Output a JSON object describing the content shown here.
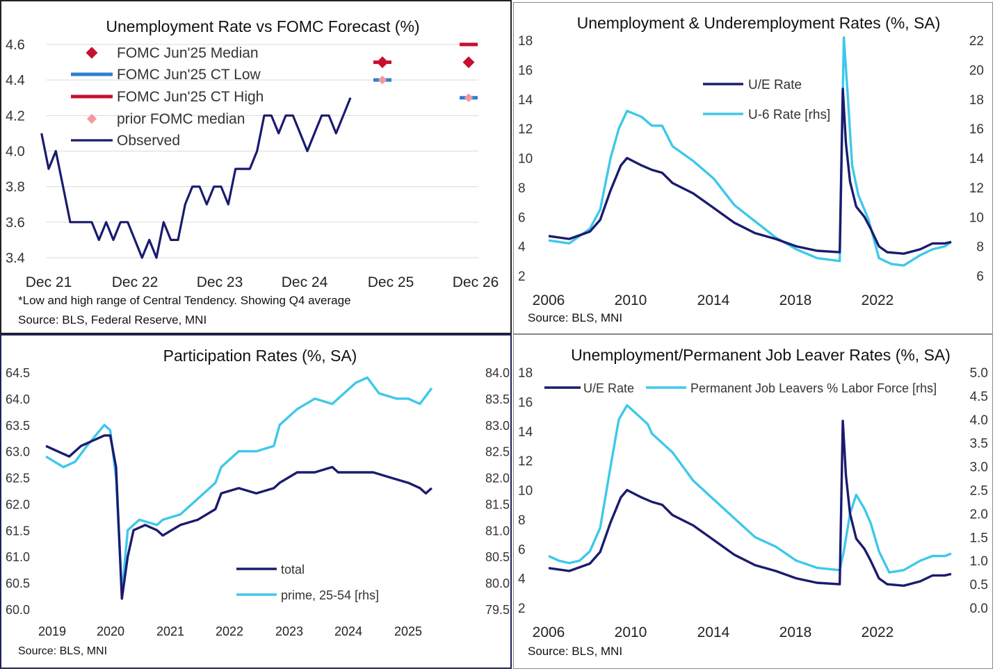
{
  "colors": {
    "navy": "#1a1b6e",
    "cyan": "#3ec8ea",
    "median": "#c8102e",
    "ct_low": "#2f7fcc",
    "ct_high": "#c8102e",
    "prior": "#f4989e",
    "grid": "#d9d9d9"
  },
  "chart_data": [
    {
      "id": "p1",
      "type": "line",
      "title": "Unemployment Rate vs FOMC Forecast (%)",
      "footnote": "*Low and high range of Central Tendency. Showing Q4 average",
      "source": "Source: BLS, Federal Reserve, MNI",
      "x_ticks": [
        "Dec 21",
        "Dec 22",
        "Dec 23",
        "Dec 24",
        "Dec 25",
        "Dec 26"
      ],
      "ylim": [
        3.4,
        4.6
      ],
      "y_ticks": [
        "4.6",
        "4.4",
        "4.2",
        "4.0",
        "3.8",
        "3.6",
        "3.4"
      ],
      "grid": true,
      "legend_position": "top-left",
      "legend": [
        "FOMC Jun'25 Median",
        "FOMC Jun'25 CT Low",
        "FOMC Jun'25 CT High",
        "prior FOMC median",
        "Observed"
      ],
      "observed": {
        "name": "Observed",
        "start": "Nov 2021",
        "values": [
          4.1,
          3.9,
          4.0,
          3.8,
          3.6,
          3.6,
          3.6,
          3.6,
          3.5,
          3.6,
          3.5,
          3.6,
          3.6,
          3.5,
          3.4,
          3.5,
          3.4,
          3.6,
          3.5,
          3.5,
          3.7,
          3.8,
          3.8,
          3.7,
          3.8,
          3.8,
          3.7,
          3.9,
          3.9,
          3.9,
          4.0,
          4.2,
          4.2,
          4.1,
          4.2,
          4.2,
          4.1,
          4.0,
          4.1,
          4.2,
          4.2,
          4.1,
          4.2,
          4.3
        ]
      },
      "fomc_points": [
        {
          "x": "Dec 25",
          "median": 4.5,
          "ct_low": 4.4,
          "ct_high": 4.5,
          "prior_median": 4.4
        },
        {
          "x": "Dec 26",
          "median": 4.5,
          "ct_low": 4.3,
          "ct_high": 4.6,
          "prior_median": 4.3
        }
      ]
    },
    {
      "id": "p2",
      "type": "line",
      "title": "Unemployment & Underemployment Rates (%, SA)",
      "source": "Source: BLS, MNI",
      "x_ticks": [
        "2006",
        "2010",
        "2014",
        "2018",
        "2022"
      ],
      "xlim": [
        2006,
        2025.6
      ],
      "ylim": [
        2,
        18
      ],
      "y2lim": [
        6,
        22
      ],
      "y_ticks": [
        "18",
        "16",
        "14",
        "12",
        "10",
        "8",
        "6",
        "4",
        "2"
      ],
      "y2_ticks": [
        "22",
        "20",
        "18",
        "16",
        "14",
        "12",
        "10",
        "8",
        "6"
      ],
      "grid": false,
      "legend": [
        "U/E Rate",
        "U-6 Rate [rhs]"
      ],
      "series": [
        {
          "name": "U/E Rate",
          "axis": "left",
          "points": [
            [
              2006,
              4.7
            ],
            [
              2007,
              4.5
            ],
            [
              2008,
              5.0
            ],
            [
              2008.5,
              5.8
            ],
            [
              2009,
              7.8
            ],
            [
              2009.5,
              9.5
            ],
            [
              2009.8,
              10.0
            ],
            [
              2010.5,
              9.5
            ],
            [
              2011,
              9.2
            ],
            [
              2011.5,
              9.0
            ],
            [
              2012,
              8.3
            ],
            [
              2013,
              7.6
            ],
            [
              2014,
              6.6
            ],
            [
              2015,
              5.6
            ],
            [
              2016,
              4.9
            ],
            [
              2017,
              4.5
            ],
            [
              2018,
              4.0
            ],
            [
              2019,
              3.7
            ],
            [
              2020.1,
              3.6
            ],
            [
              2020.25,
              14.7
            ],
            [
              2020.4,
              11.0
            ],
            [
              2020.6,
              8.4
            ],
            [
              2020.9,
              6.7
            ],
            [
              2021.3,
              6.0
            ],
            [
              2021.6,
              5.2
            ],
            [
              2022,
              4.0
            ],
            [
              2022.4,
              3.6
            ],
            [
              2023.2,
              3.5
            ],
            [
              2024,
              3.8
            ],
            [
              2024.6,
              4.2
            ],
            [
              2025.2,
              4.2
            ],
            [
              2025.5,
              4.3
            ]
          ]
        },
        {
          "name": "U-6 Rate [rhs]",
          "axis": "right",
          "points": [
            [
              2006,
              8.4
            ],
            [
              2007,
              8.2
            ],
            [
              2008,
              9.2
            ],
            [
              2008.5,
              10.5
            ],
            [
              2009,
              14.0
            ],
            [
              2009.4,
              16.0
            ],
            [
              2009.8,
              17.2
            ],
            [
              2010.5,
              16.8
            ],
            [
              2011,
              16.2
            ],
            [
              2011.5,
              16.2
            ],
            [
              2012,
              14.8
            ],
            [
              2013,
              13.8
            ],
            [
              2014,
              12.6
            ],
            [
              2015,
              10.8
            ],
            [
              2016,
              9.7
            ],
            [
              2017,
              8.6
            ],
            [
              2018,
              7.8
            ],
            [
              2019,
              7.2
            ],
            [
              2020.1,
              7.0
            ],
            [
              2020.3,
              22.8
            ],
            [
              2020.5,
              18.0
            ],
            [
              2020.7,
              13.5
            ],
            [
              2021,
              11.5
            ],
            [
              2021.5,
              9.8
            ],
            [
              2022,
              7.2
            ],
            [
              2022.6,
              6.8
            ],
            [
              2023.2,
              6.7
            ],
            [
              2024,
              7.4
            ],
            [
              2024.6,
              7.8
            ],
            [
              2025.2,
              8.0
            ],
            [
              2025.5,
              8.3
            ]
          ]
        }
      ]
    },
    {
      "id": "p3",
      "type": "line",
      "title": "Participation Rates (%, SA)",
      "source": "Source: BLS, MNI",
      "x_ticks": [
        "2019",
        "2020",
        "2021",
        "2022",
        "2023",
        "2024",
        "2025"
      ],
      "xlim": [
        2019,
        2025.9
      ],
      "ylim": [
        60.0,
        64.5
      ],
      "y2lim": [
        79.5,
        84.0
      ],
      "y_ticks": [
        "64.5",
        "64.0",
        "63.5",
        "63.0",
        "62.5",
        "62.0",
        "61.5",
        "61.0",
        "60.5",
        "60.0"
      ],
      "y2_ticks": [
        "84.0",
        "83.5",
        "83.0",
        "82.5",
        "82.0",
        "81.5",
        "81.0",
        "80.5",
        "80.0",
        "79.5"
      ],
      "grid": false,
      "legend": [
        "total",
        "prime, 25-54 [rhs]"
      ],
      "series": [
        {
          "name": "total",
          "axis": "left",
          "points": [
            [
              2019,
              63.1
            ],
            [
              2019.2,
              63.0
            ],
            [
              2019.4,
              62.9
            ],
            [
              2019.6,
              63.1
            ],
            [
              2019.8,
              63.2
            ],
            [
              2020,
              63.3
            ],
            [
              2020.1,
              63.3
            ],
            [
              2020.2,
              62.7
            ],
            [
              2020.3,
              60.2
            ],
            [
              2020.4,
              61.0
            ],
            [
              2020.5,
              61.5
            ],
            [
              2020.7,
              61.6
            ],
            [
              2020.9,
              61.5
            ],
            [
              2021,
              61.4
            ],
            [
              2021.3,
              61.6
            ],
            [
              2021.6,
              61.7
            ],
            [
              2021.9,
              61.9
            ],
            [
              2022,
              62.2
            ],
            [
              2022.3,
              62.3
            ],
            [
              2022.6,
              62.2
            ],
            [
              2022.9,
              62.3
            ],
            [
              2023,
              62.4
            ],
            [
              2023.3,
              62.6
            ],
            [
              2023.6,
              62.6
            ],
            [
              2023.9,
              62.7
            ],
            [
              2024,
              62.6
            ],
            [
              2024.3,
              62.6
            ],
            [
              2024.6,
              62.6
            ],
            [
              2024.9,
              62.5
            ],
            [
              2025.2,
              62.4
            ],
            [
              2025.4,
              62.3
            ],
            [
              2025.5,
              62.2
            ],
            [
              2025.6,
              62.3
            ]
          ]
        },
        {
          "name": "prime, 25-54 [rhs]",
          "axis": "right",
          "points": [
            [
              2019,
              82.4
            ],
            [
              2019.3,
              82.2
            ],
            [
              2019.5,
              82.3
            ],
            [
              2019.7,
              82.6
            ],
            [
              2020,
              83.0
            ],
            [
              2020.1,
              82.9
            ],
            [
              2020.2,
              82.0
            ],
            [
              2020.3,
              79.8
            ],
            [
              2020.4,
              81.0
            ],
            [
              2020.6,
              81.2
            ],
            [
              2020.9,
              81.1
            ],
            [
              2021,
              81.2
            ],
            [
              2021.3,
              81.3
            ],
            [
              2021.6,
              81.6
            ],
            [
              2021.9,
              81.9
            ],
            [
              2022,
              82.2
            ],
            [
              2022.3,
              82.5
            ],
            [
              2022.6,
              82.5
            ],
            [
              2022.9,
              82.6
            ],
            [
              2023,
              83.0
            ],
            [
              2023.3,
              83.3
            ],
            [
              2023.6,
              83.5
            ],
            [
              2023.9,
              83.4
            ],
            [
              2024,
              83.5
            ],
            [
              2024.3,
              83.8
            ],
            [
              2024.5,
              83.9
            ],
            [
              2024.7,
              83.6
            ],
            [
              2025,
              83.5
            ],
            [
              2025.2,
              83.5
            ],
            [
              2025.4,
              83.4
            ],
            [
              2025.6,
              83.7
            ]
          ]
        }
      ]
    },
    {
      "id": "p4",
      "type": "line",
      "title": "Unemployment/Permanent Job Leaver Rates (%, SA)",
      "source": "Source: BLS, MNI",
      "x_ticks": [
        "2006",
        "2010",
        "2014",
        "2018",
        "2022"
      ],
      "xlim": [
        2006,
        2025.6
      ],
      "ylim": [
        2,
        18
      ],
      "y2lim": [
        0.0,
        5.0
      ],
      "y_ticks": [
        "18",
        "16",
        "14",
        "12",
        "10",
        "8",
        "6",
        "4",
        "2"
      ],
      "y2_ticks": [
        "5.0",
        "4.5",
        "4.0",
        "3.5",
        "3.0",
        "2.5",
        "2.0",
        "1.5",
        "1.0",
        "0.5",
        "0.0"
      ],
      "grid": false,
      "legend_position": "top",
      "legend": [
        "U/E Rate",
        "Permanent Job Leavers % Labor Force [rhs]"
      ],
      "series": [
        {
          "name": "U/E Rate",
          "axis": "left",
          "points": [
            [
              2006,
              4.7
            ],
            [
              2007,
              4.5
            ],
            [
              2008,
              5.0
            ],
            [
              2008.5,
              5.8
            ],
            [
              2009,
              7.8
            ],
            [
              2009.5,
              9.5
            ],
            [
              2009.8,
              10.0
            ],
            [
              2010.5,
              9.5
            ],
            [
              2011,
              9.2
            ],
            [
              2011.5,
              9.0
            ],
            [
              2012,
              8.3
            ],
            [
              2013,
              7.6
            ],
            [
              2014,
              6.6
            ],
            [
              2015,
              5.6
            ],
            [
              2016,
              4.9
            ],
            [
              2017,
              4.5
            ],
            [
              2018,
              4.0
            ],
            [
              2019,
              3.7
            ],
            [
              2020.1,
              3.6
            ],
            [
              2020.25,
              14.7
            ],
            [
              2020.4,
              11.0
            ],
            [
              2020.6,
              8.4
            ],
            [
              2020.9,
              6.7
            ],
            [
              2021.3,
              6.0
            ],
            [
              2021.6,
              5.2
            ],
            [
              2022,
              4.0
            ],
            [
              2022.4,
              3.6
            ],
            [
              2023.2,
              3.5
            ],
            [
              2024,
              3.8
            ],
            [
              2024.6,
              4.2
            ],
            [
              2025.2,
              4.2
            ],
            [
              2025.5,
              4.3
            ]
          ]
        },
        {
          "name": "Permanent Job Leavers % Labor Force [rhs]",
          "axis": "right",
          "points": [
            [
              2006,
              1.1
            ],
            [
              2006.5,
              1.0
            ],
            [
              2007,
              0.95
            ],
            [
              2007.5,
              1.0
            ],
            [
              2008,
              1.2
            ],
            [
              2008.5,
              1.7
            ],
            [
              2009,
              3.0
            ],
            [
              2009.4,
              4.0
            ],
            [
              2009.8,
              4.3
            ],
            [
              2010.3,
              4.1
            ],
            [
              2010.8,
              3.9
            ],
            [
              2011,
              3.7
            ],
            [
              2012,
              3.3
            ],
            [
              2013,
              2.7
            ],
            [
              2014,
              2.3
            ],
            [
              2015,
              1.9
            ],
            [
              2016,
              1.5
            ],
            [
              2017,
              1.3
            ],
            [
              2018,
              1.0
            ],
            [
              2019,
              0.85
            ],
            [
              2020.1,
              0.8
            ],
            [
              2020.3,
              1.2
            ],
            [
              2020.6,
              2.0
            ],
            [
              2020.9,
              2.4
            ],
            [
              2021.3,
              2.1
            ],
            [
              2021.6,
              1.8
            ],
            [
              2022,
              1.2
            ],
            [
              2022.5,
              0.75
            ],
            [
              2023.2,
              0.8
            ],
            [
              2024,
              1.0
            ],
            [
              2024.6,
              1.1
            ],
            [
              2025.2,
              1.1
            ],
            [
              2025.5,
              1.15
            ]
          ]
        }
      ]
    }
  ]
}
